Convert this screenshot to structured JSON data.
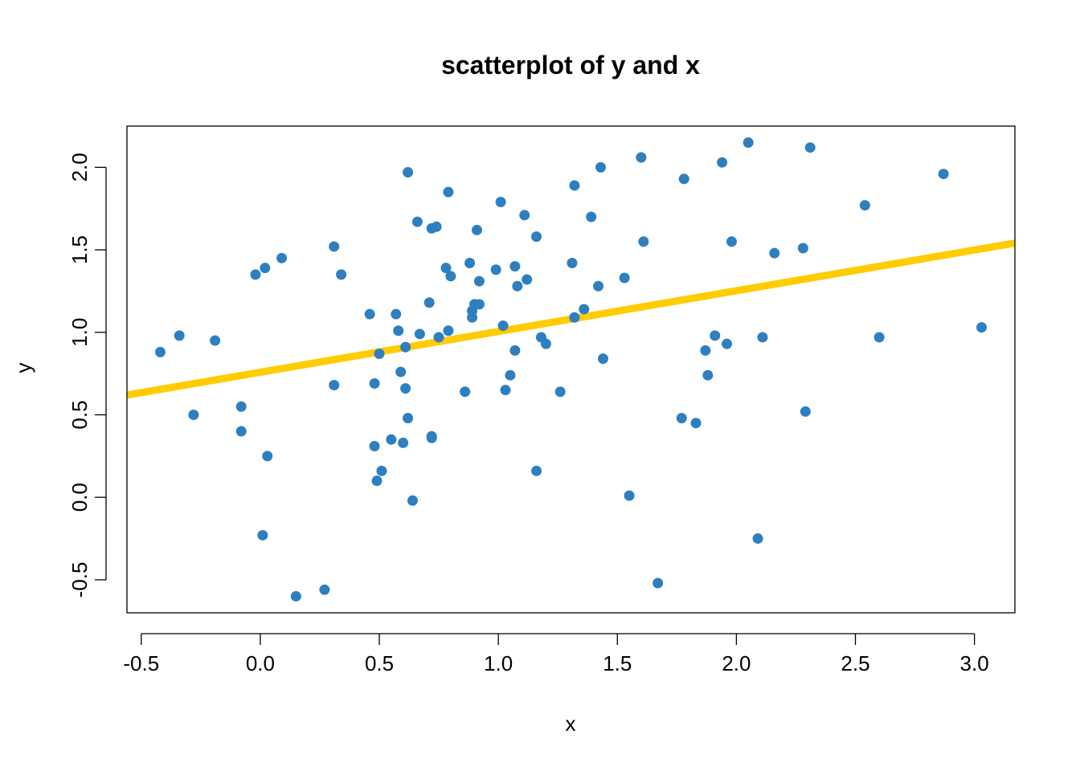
{
  "chart_data": {
    "type": "scatter",
    "title": "scatterplot of y and x",
    "xlabel": "x",
    "ylabel": "y",
    "xlim": [
      -0.56,
      3.17
    ],
    "ylim": [
      -0.7,
      2.25
    ],
    "xticks": [
      -0.5,
      0.0,
      0.5,
      1.0,
      1.5,
      2.0,
      2.5,
      3.0
    ],
    "xtick_labels": [
      "-0.5",
      "0.0",
      "0.5",
      "1.0",
      "1.5",
      "2.0",
      "2.5",
      "3.0"
    ],
    "yticks": [
      -0.5,
      0.0,
      0.5,
      1.0,
      1.5,
      2.0
    ],
    "ytick_labels": [
      "-0.5",
      "0.0",
      "0.5",
      "1.0",
      "1.5",
      "2.0"
    ],
    "grid": false,
    "point_color": "#2E7FBF",
    "line_color": "#FFCC00",
    "fit_line": {
      "intercept": 0.758,
      "slope": 0.247
    },
    "points": [
      [
        -0.42,
        0.88
      ],
      [
        -0.34,
        0.98
      ],
      [
        -0.28,
        0.5
      ],
      [
        -0.19,
        0.95
      ],
      [
        -0.08,
        0.55
      ],
      [
        -0.08,
        0.4
      ],
      [
        -0.02,
        1.35
      ],
      [
        0.02,
        1.39
      ],
      [
        0.03,
        0.25
      ],
      [
        0.01,
        -0.23
      ],
      [
        0.09,
        1.45
      ],
      [
        0.15,
        -0.6
      ],
      [
        0.27,
        -0.56
      ],
      [
        0.31,
        1.52
      ],
      [
        0.31,
        0.68
      ],
      [
        0.34,
        1.35
      ],
      [
        0.46,
        1.11
      ],
      [
        0.48,
        0.69
      ],
      [
        0.48,
        0.31
      ],
      [
        0.49,
        0.1
      ],
      [
        0.5,
        0.87
      ],
      [
        0.51,
        0.16
      ],
      [
        0.55,
        0.35
      ],
      [
        0.57,
        1.11
      ],
      [
        0.58,
        1.01
      ],
      [
        0.59,
        0.76
      ],
      [
        0.6,
        0.33
      ],
      [
        0.61,
        0.91
      ],
      [
        0.61,
        0.66
      ],
      [
        0.62,
        0.48
      ],
      [
        0.62,
        1.97
      ],
      [
        0.64,
        -0.02
      ],
      [
        0.66,
        1.67
      ],
      [
        0.67,
        0.99
      ],
      [
        0.71,
        1.18
      ],
      [
        0.72,
        1.63
      ],
      [
        0.72,
        0.37
      ],
      [
        0.72,
        0.36
      ],
      [
        0.74,
        1.64
      ],
      [
        0.75,
        0.97
      ],
      [
        0.78,
        1.39
      ],
      [
        0.79,
        1.85
      ],
      [
        0.79,
        1.01
      ],
      [
        0.8,
        1.34
      ],
      [
        0.86,
        0.64
      ],
      [
        0.88,
        1.42
      ],
      [
        0.89,
        1.09
      ],
      [
        0.89,
        1.13
      ],
      [
        0.9,
        1.17
      ],
      [
        0.91,
        1.62
      ],
      [
        0.92,
        1.31
      ],
      [
        0.92,
        1.17
      ],
      [
        0.99,
        1.38
      ],
      [
        1.01,
        1.79
      ],
      [
        1.02,
        1.04
      ],
      [
        1.03,
        0.65
      ],
      [
        1.05,
        0.74
      ],
      [
        1.07,
        1.4
      ],
      [
        1.07,
        0.89
      ],
      [
        1.08,
        1.28
      ],
      [
        1.11,
        1.71
      ],
      [
        1.12,
        1.32
      ],
      [
        1.16,
        1.58
      ],
      [
        1.16,
        0.16
      ],
      [
        1.18,
        0.97
      ],
      [
        1.2,
        0.93
      ],
      [
        1.26,
        0.64
      ],
      [
        1.31,
        1.42
      ],
      [
        1.32,
        1.89
      ],
      [
        1.32,
        1.09
      ],
      [
        1.36,
        1.14
      ],
      [
        1.39,
        1.7
      ],
      [
        1.42,
        1.28
      ],
      [
        1.43,
        2.0
      ],
      [
        1.44,
        0.84
      ],
      [
        1.53,
        1.33
      ],
      [
        1.55,
        0.01
      ],
      [
        1.6,
        2.06
      ],
      [
        1.61,
        1.55
      ],
      [
        1.67,
        -0.52
      ],
      [
        1.77,
        0.48
      ],
      [
        1.78,
        1.93
      ],
      [
        1.83,
        0.45
      ],
      [
        1.87,
        0.89
      ],
      [
        1.88,
        0.74
      ],
      [
        1.91,
        0.98
      ],
      [
        1.94,
        2.03
      ],
      [
        1.96,
        0.93
      ],
      [
        1.98,
        1.55
      ],
      [
        2.05,
        2.15
      ],
      [
        2.09,
        -0.25
      ],
      [
        2.11,
        0.97
      ],
      [
        2.16,
        1.48
      ],
      [
        2.28,
        1.51
      ],
      [
        2.29,
        0.52
      ],
      [
        2.31,
        2.12
      ],
      [
        2.54,
        1.77
      ],
      [
        2.6,
        0.97
      ],
      [
        2.87,
        1.96
      ],
      [
        3.03,
        1.03
      ]
    ]
  }
}
